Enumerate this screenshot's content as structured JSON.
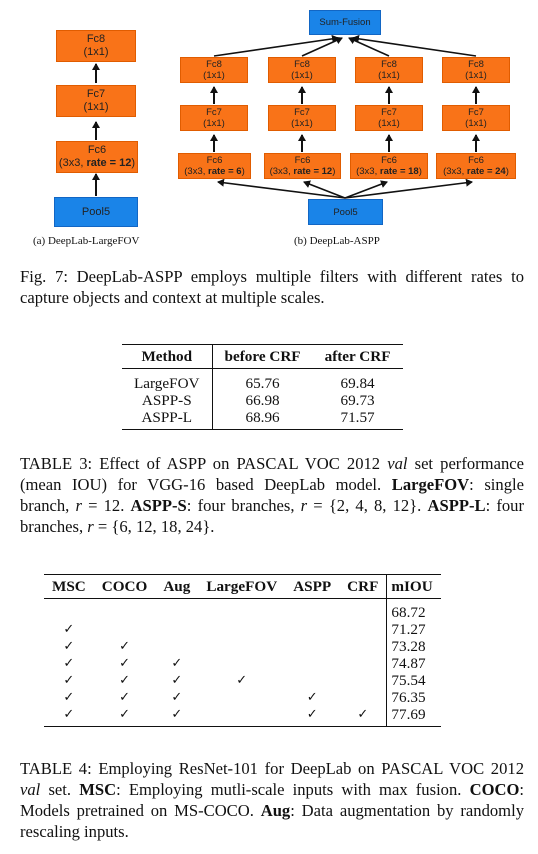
{
  "figure": {
    "largefov": {
      "fc8": [
        "Fc8",
        "(1x1)"
      ],
      "fc7": [
        "Fc7",
        "(1x1)"
      ],
      "fc6": [
        "Fc6",
        "(3x3, rate = 12)"
      ],
      "fc6_rate_prefix": "(3x3, ",
      "fc6_rate_bold": "rate = 12",
      "fc6_rate_suffix": ")",
      "pool": "Pool5",
      "caption": "(a) DeepLab-LargeFOV"
    },
    "aspp": {
      "fusion": "Sum-Fusion",
      "fc8": [
        "Fc8",
        "(1x1)"
      ],
      "fc7": [
        "Fc7",
        "(1x1)"
      ],
      "branches": [
        {
          "rate_prefix": "(3x3, ",
          "rate_bold": "rate = 6",
          "rate_suffix": ")"
        },
        {
          "rate_prefix": "(3x3, ",
          "rate_bold": "rate = 12",
          "rate_suffix": ")"
        },
        {
          "rate_prefix": "(3x3, ",
          "rate_bold": "rate = 18",
          "rate_suffix": ")"
        },
        {
          "rate_prefix": "(3x3, ",
          "rate_bold": "rate = 24",
          "rate_suffix": ")"
        }
      ],
      "fc6_title": "Fc6",
      "pool": "Pool5",
      "caption": "(b) DeepLab-ASPP"
    },
    "caption": "Fig. 7: DeepLab-ASPP employs multiple filters with different rates to capture objects and context at multiple scales."
  },
  "table3": {
    "headers": [
      "Method",
      "before CRF",
      "after CRF"
    ],
    "rows": [
      [
        "LargeFOV",
        "65.76",
        "69.84"
      ],
      [
        "ASPP-S",
        "66.98",
        "69.73"
      ],
      [
        "ASPP-L",
        "68.96",
        "71.57"
      ]
    ],
    "caption": {
      "p1": "TABLE 3: Effect of ASPP on PASCAL VOC 2012 ",
      "val": "val",
      "p2": " set performance (mean IOU) for VGG-16 based DeepLab model. ",
      "l1": "LargeFOV",
      "p3": ": single branch, ",
      "r1": "r",
      "p4": " = 12. ",
      "l2": "ASPP-S",
      "p5": ": four branches, ",
      "r2": "r",
      "p6": " = {2, 4, 8, 12}. ",
      "l3": "ASPP-L",
      "p7": ": four branches, ",
      "r3": "r",
      "p8": " = {6, 12, 18, 24}."
    }
  },
  "table4": {
    "headers": [
      "MSC",
      "COCO",
      "Aug",
      "LargeFOV",
      "ASPP",
      "CRF",
      "mIOU"
    ],
    "check": "✓",
    "rows": [
      {
        "flags": [
          false,
          false,
          false,
          false,
          false,
          false
        ],
        "miou": "68.72"
      },
      {
        "flags": [
          true,
          false,
          false,
          false,
          false,
          false
        ],
        "miou": "71.27"
      },
      {
        "flags": [
          true,
          true,
          false,
          false,
          false,
          false
        ],
        "miou": "73.28"
      },
      {
        "flags": [
          true,
          true,
          true,
          false,
          false,
          false
        ],
        "miou": "74.87"
      },
      {
        "flags": [
          true,
          true,
          true,
          true,
          false,
          false
        ],
        "miou": "75.54"
      },
      {
        "flags": [
          true,
          true,
          true,
          false,
          true,
          false
        ],
        "miou": "76.35"
      },
      {
        "flags": [
          true,
          true,
          true,
          false,
          true,
          true
        ],
        "miou": "77.69"
      }
    ],
    "caption": {
      "p1": "TABLE 4: Employing ResNet-101 for DeepLab on PASCAL VOC 2012 ",
      "val": "val",
      "p2": " set. ",
      "l1": "MSC",
      "p3": ": Employing mutli-scale inputs with max fusion. ",
      "l2": "COCO",
      "p4": ": Models pretrained on MS-COCO. ",
      "l3": "Aug",
      "p5": ": Data augmentation by randomly rescaling inputs."
    }
  }
}
